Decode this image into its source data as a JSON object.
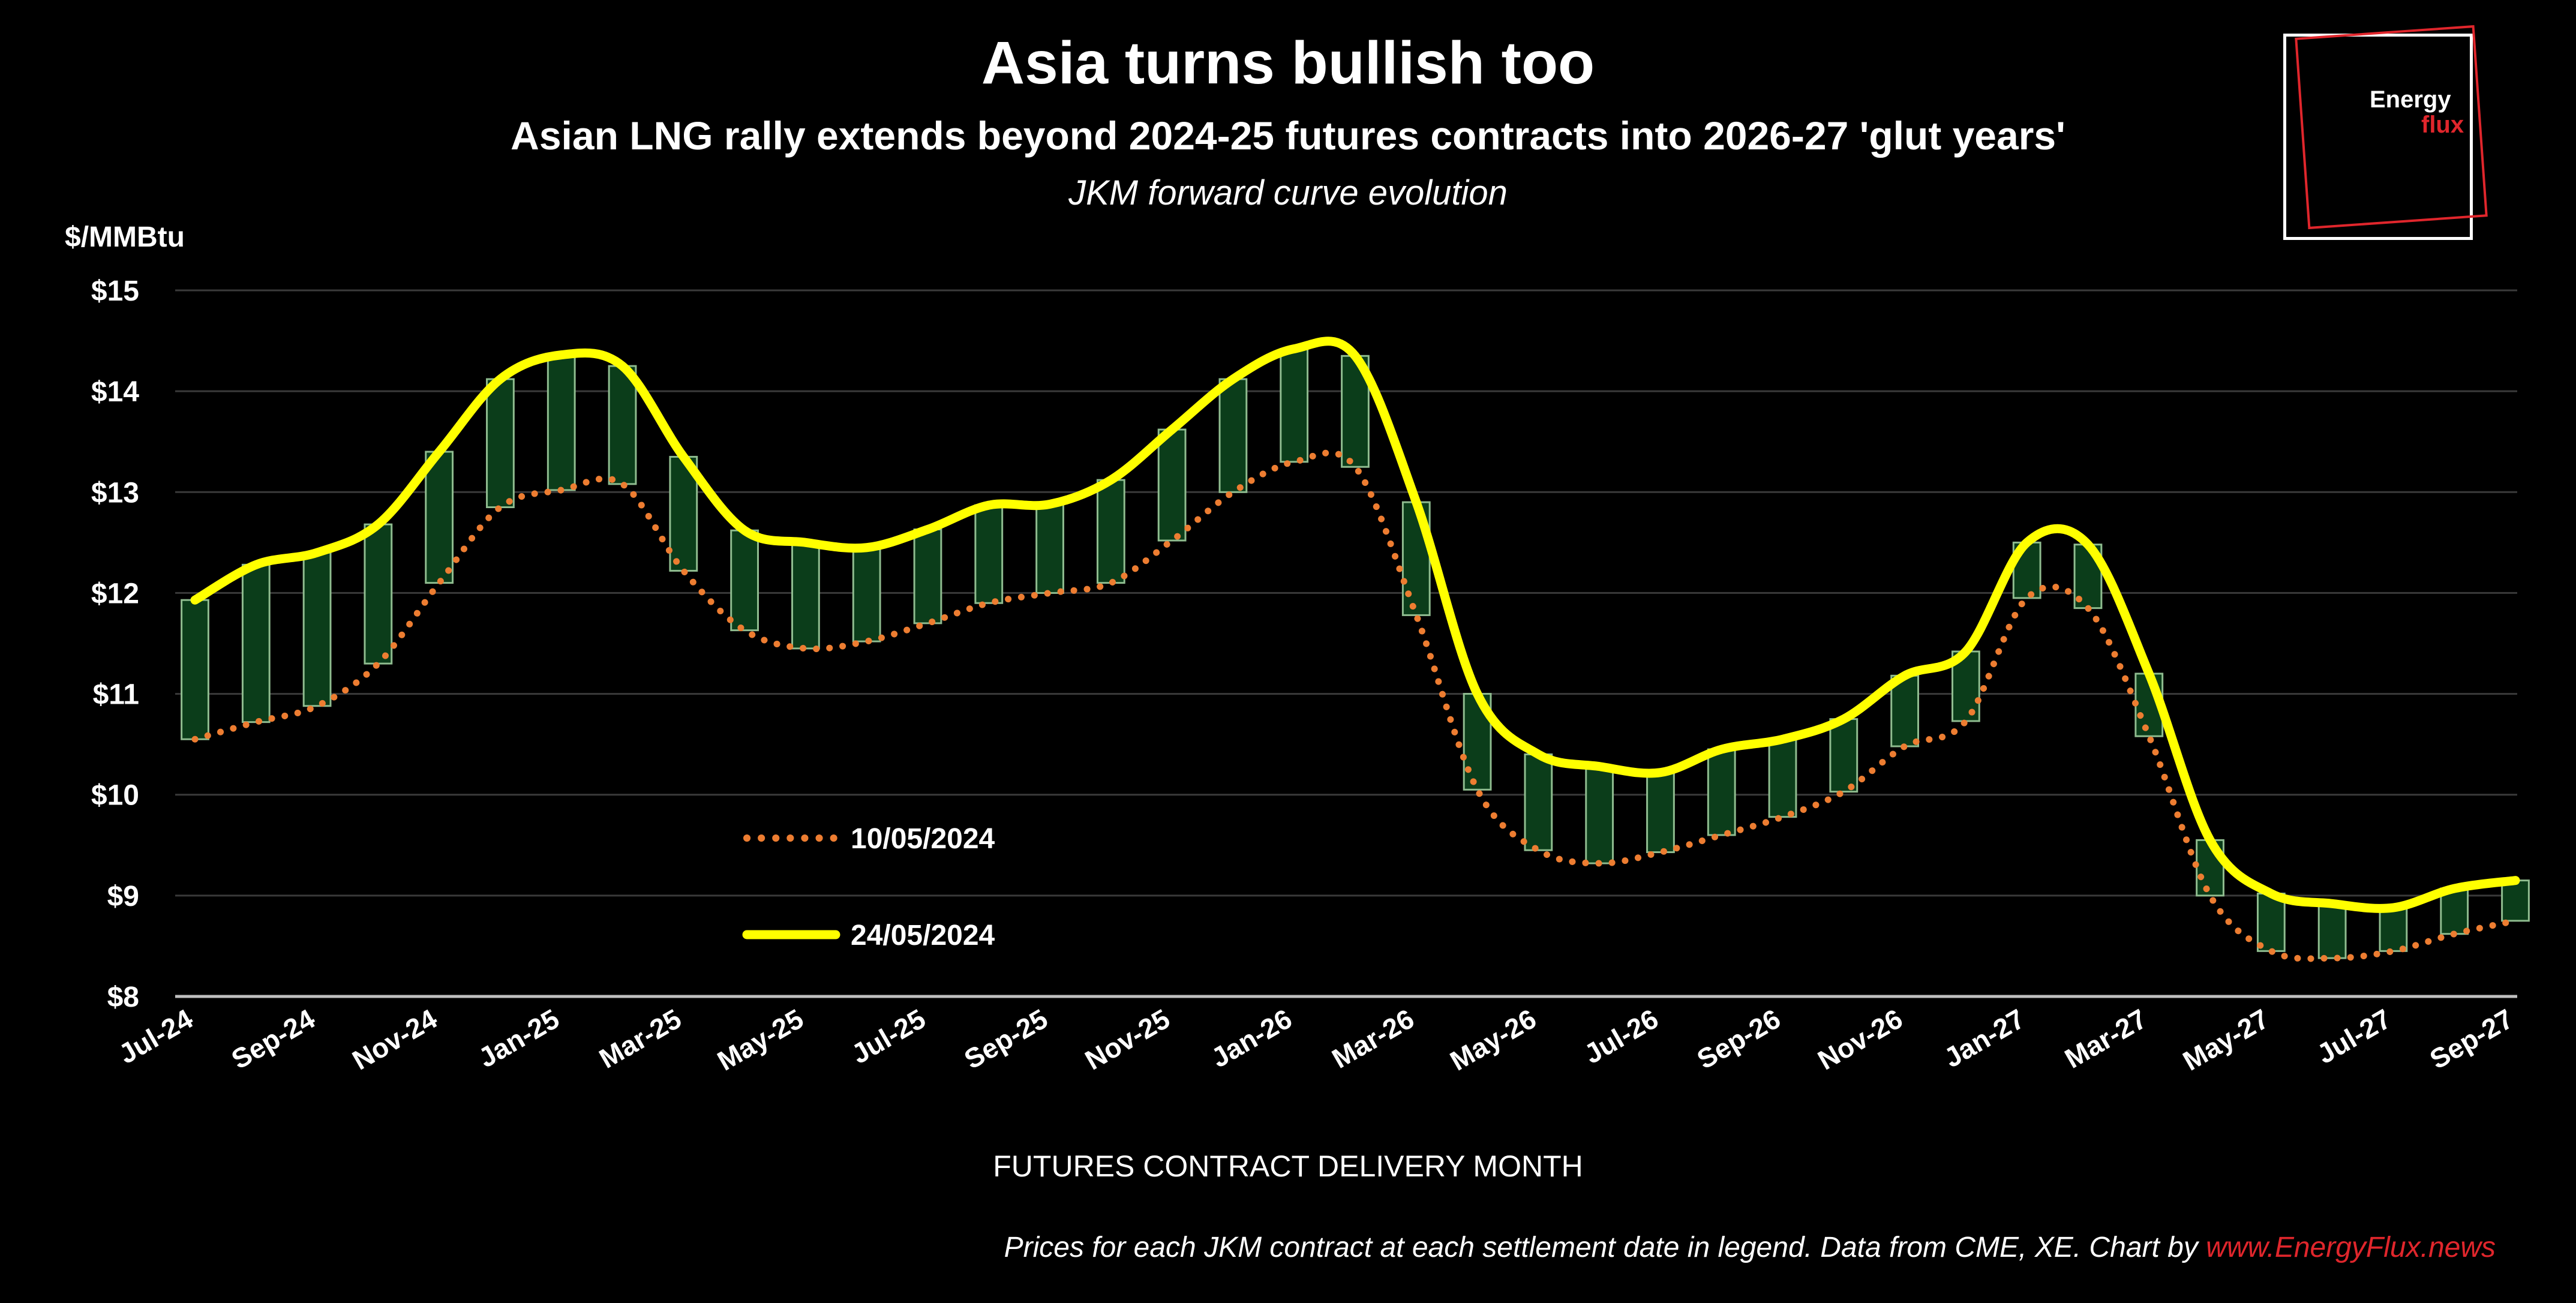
{
  "header": {
    "title": "Asia turns bullish too",
    "subtitle": "Asian LNG rally extends beyond 2024-25 futures contracts into 2026-27 'glut years'",
    "caption": "JKM forward curve evolution"
  },
  "logo": {
    "line1": "Energy",
    "line2": "flux"
  },
  "footer": {
    "text": "Prices for each JKM contract at each settlement date in legend. Data from CME, XE. Chart by ",
    "link": "www.EnergyFlux.news"
  },
  "colors": {
    "background": "#000000",
    "series_earlier": "#ed7d31",
    "series_later": "#ffff00",
    "bar_fill": "#0b3d1a",
    "bar_stroke": "#8fbc8f",
    "brand_red": "#e0262c"
  },
  "chart_data": {
    "type": "line",
    "title": "Asia turns bullish too",
    "ylabel": "$/MMBtu",
    "xlabel": "FUTURES CONTRACT DELIVERY MONTH",
    "ylim": [
      8,
      15
    ],
    "yticks": [
      8,
      9,
      10,
      11,
      12,
      13,
      14,
      15
    ],
    "ytick_labels": [
      "$8",
      "$9",
      "$10",
      "$11",
      "$12",
      "$13",
      "$14",
      "$15"
    ],
    "grid": true,
    "legend_position": "center-left",
    "categories": [
      "Jul-24",
      "Aug-24",
      "Sep-24",
      "Oct-24",
      "Nov-24",
      "Dec-24",
      "Jan-25",
      "Feb-25",
      "Mar-25",
      "Apr-25",
      "May-25",
      "Jun-25",
      "Jul-25",
      "Aug-25",
      "Sep-25",
      "Oct-25",
      "Nov-25",
      "Dec-25",
      "Jan-26",
      "Feb-26",
      "Mar-26",
      "Apr-26",
      "May-26",
      "Jun-26",
      "Jul-26",
      "Aug-26",
      "Sep-26",
      "Oct-26",
      "Nov-26",
      "Dec-26",
      "Jan-27",
      "Feb-27",
      "Mar-27",
      "Apr-27",
      "May-27",
      "Jun-27",
      "Jul-27",
      "Aug-27",
      "Sep-27"
    ],
    "xtick_labels": [
      "Jul-24",
      "Sep-24",
      "Nov-24",
      "Jan-25",
      "Mar-25",
      "May-25",
      "Jul-25",
      "Sep-25",
      "Nov-25",
      "Jan-26",
      "Mar-26",
      "May-26",
      "Jul-26",
      "Sep-26",
      "Nov-26",
      "Jan-27",
      "Mar-27",
      "May-27",
      "Jul-27",
      "Sep-27"
    ],
    "series": [
      {
        "name": "10/05/2024",
        "style": "dotted",
        "values": [
          10.55,
          10.72,
          10.88,
          11.3,
          12.1,
          12.85,
          13.02,
          13.08,
          12.22,
          11.63,
          11.45,
          11.52,
          11.7,
          11.9,
          12.0,
          12.1,
          12.52,
          13.0,
          13.3,
          13.25,
          11.78,
          10.05,
          9.45,
          9.32,
          9.43,
          9.6,
          9.78,
          10.03,
          10.48,
          10.73,
          11.95,
          11.85,
          10.58,
          9.0,
          8.45,
          8.38,
          8.45,
          8.62,
          8.75
        ]
      },
      {
        "name": "24/05/2024",
        "style": "solid",
        "values": [
          11.93,
          12.28,
          12.4,
          12.68,
          13.4,
          14.12,
          14.36,
          14.25,
          13.35,
          12.62,
          12.5,
          12.45,
          12.63,
          12.87,
          12.88,
          13.12,
          13.62,
          14.12,
          14.42,
          14.35,
          12.9,
          11.0,
          10.4,
          10.28,
          10.22,
          10.45,
          10.55,
          10.75,
          11.18,
          11.42,
          12.5,
          12.48,
          11.2,
          9.55,
          9.02,
          8.92,
          8.88,
          9.07,
          9.15
        ]
      }
    ]
  }
}
